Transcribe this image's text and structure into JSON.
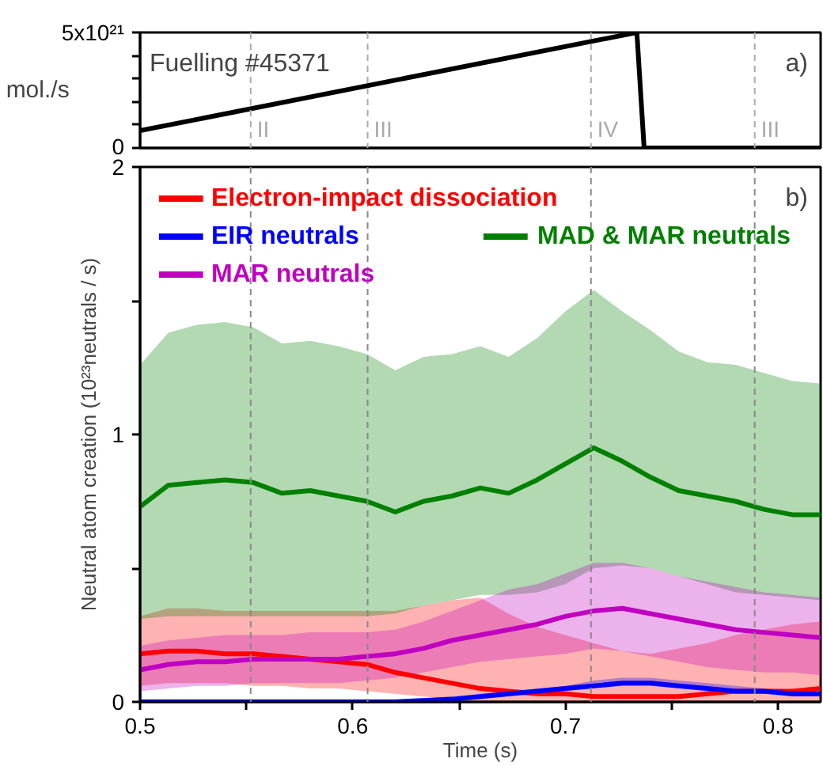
{
  "chart_data": [
    {
      "type": "line",
      "x": [
        0.5,
        0.7336,
        0.737,
        0.82
      ],
      "ylim": [
        0,
        5e+21
      ],
      "xlim": [
        0.5,
        0.82
      ],
      "yticks": [
        0,
        {
          "value": 1e+21,
          "label": null
        },
        {
          "value": 2e+21,
          "label": null
        },
        {
          "value": 3e+21,
          "label": null
        },
        {
          "value": 4e+21,
          "label": null
        },
        {
          "value": 5e+21,
          "label": "5x10²¹"
        }
      ],
      "ylabel": "mol./s",
      "tick_labels": "y",
      "series": [
        {
          "color": "#000000",
          "values": [
            7.5e+20,
            5e+21,
            0,
            0
          ]
        }
      ],
      "annotations": [
        "Fuelling #45371",
        "a)"
      ],
      "ref_lines": [
        {
          "axis": "x",
          "value": 0.552,
          "label": "II",
          "color": "#aaaaaa",
          "line_style": "dashed"
        },
        {
          "axis": "x",
          "value": 0.607,
          "label": "III",
          "color": "#aaaaaa",
          "line_style": "dashed"
        },
        {
          "axis": "x",
          "value": 0.712,
          "label": "IV",
          "color": "#aaaaaa",
          "line_style": "dashed"
        },
        {
          "axis": "x",
          "value": 0.789,
          "label": "III",
          "color": "#aaaaaa",
          "line_style": "dashed"
        }
      ]
    },
    {
      "type": "line",
      "xlabel": "Time (s)",
      "ylabel": "Neutral atom creation (10²³neutrals / s)",
      "x": [
        0.5,
        0.5133,
        0.5267,
        0.54,
        0.5533,
        0.5667,
        0.58,
        0.5933,
        0.6067,
        0.62,
        0.6333,
        0.6467,
        0.66,
        0.6733,
        0.6867,
        0.7,
        0.7133,
        0.7267,
        0.74,
        0.7533,
        0.7667,
        0.78,
        0.7933,
        0.8067,
        0.82
      ],
      "xlim": [
        0.5,
        0.82
      ],
      "ylim": [
        0,
        2
      ],
      "xticks": [
        {
          "value": 0.5,
          "label": "0.5"
        },
        {
          "value": 0.55,
          "label": null
        },
        {
          "value": 0.6,
          "label": "0.6"
        },
        {
          "value": 0.65,
          "label": null
        },
        {
          "value": 0.7,
          "label": "0.7"
        },
        {
          "value": 0.75,
          "label": null
        },
        {
          "value": 0.8,
          "label": "0.8"
        }
      ],
      "yticks": [
        0,
        {
          "value": 0.5,
          "label": null
        },
        1,
        {
          "value": 1.5,
          "label": null
        },
        2
      ],
      "legend": "top left",
      "annotations": [
        "b)"
      ],
      "ref_lines": [
        {
          "axis": "x",
          "value": 0.552,
          "color": "#888888",
          "line_style": "dashed"
        },
        {
          "axis": "x",
          "value": 0.607,
          "color": "#888888",
          "line_style": "dashed"
        },
        {
          "axis": "x",
          "value": 0.712,
          "color": "#888888",
          "line_style": "dashed"
        },
        {
          "axis": "x",
          "value": 0.789,
          "color": "#888888",
          "line_style": "dashed"
        }
      ],
      "series": [
        {
          "name": "Electron-impact dissociation",
          "color": "#ff0000",
          "values": [
            0.18,
            0.19,
            0.19,
            0.18,
            0.18,
            0.17,
            0.16,
            0.15,
            0.14,
            0.11,
            0.09,
            0.07,
            0.05,
            0.04,
            0.03,
            0.03,
            0.02,
            0.02,
            0.02,
            0.02,
            0.03,
            0.04,
            0.04,
            0.04,
            0.05
          ],
          "lower": [
            0.06,
            0.07,
            0.07,
            0.07,
            0.06,
            0.06,
            0.05,
            0.05,
            0.04,
            0.03,
            0.02,
            0.01,
            0.0,
            0.0,
            0.0,
            0.0,
            0.0,
            0.0,
            0.0,
            0.0,
            0.0,
            0.0,
            0.0,
            0.0,
            0.0
          ],
          "upper": [
            0.32,
            0.35,
            0.35,
            0.34,
            0.34,
            0.34,
            0.34,
            0.34,
            0.34,
            0.34,
            0.36,
            0.38,
            0.39,
            0.33,
            0.28,
            0.25,
            0.22,
            0.19,
            0.18,
            0.2,
            0.22,
            0.25,
            0.27,
            0.29,
            0.3
          ]
        },
        {
          "name": "EIR neutrals",
          "color": "#0000ff",
          "values": [
            0.0,
            0.0,
            0.0,
            0.0,
            0.0,
            0.0,
            0.0,
            0.0,
            0.0,
            0.0,
            0.005,
            0.01,
            0.02,
            0.03,
            0.04,
            0.05,
            0.06,
            0.07,
            0.07,
            0.06,
            0.05,
            0.04,
            0.04,
            0.03,
            0.03
          ],
          "lower": [
            0.0,
            0.0,
            0.0,
            0.0,
            0.0,
            0.0,
            0.0,
            0.0,
            0.0,
            0.0,
            0.0,
            0.0,
            0.01,
            0.02,
            0.03,
            0.04,
            0.05,
            0.06,
            0.06,
            0.05,
            0.04,
            0.03,
            0.03,
            0.02,
            0.02
          ],
          "upper": [
            0.01,
            0.01,
            0.01,
            0.01,
            0.01,
            0.01,
            0.01,
            0.01,
            0.01,
            0.01,
            0.015,
            0.02,
            0.03,
            0.04,
            0.05,
            0.06,
            0.08,
            0.09,
            0.09,
            0.08,
            0.07,
            0.06,
            0.05,
            0.04,
            0.04
          ]
        },
        {
          "name": "MAD & MAR neutrals",
          "color": "#008000",
          "values": [
            0.73,
            0.81,
            0.82,
            0.83,
            0.82,
            0.78,
            0.79,
            0.77,
            0.75,
            0.71,
            0.75,
            0.77,
            0.8,
            0.78,
            0.83,
            0.89,
            0.95,
            0.9,
            0.84,
            0.79,
            0.77,
            0.75,
            0.72,
            0.7,
            0.7
          ],
          "lower": [
            0.31,
            0.32,
            0.32,
            0.32,
            0.32,
            0.32,
            0.32,
            0.32,
            0.32,
            0.33,
            0.36,
            0.38,
            0.4,
            0.4,
            0.41,
            0.44,
            0.5,
            0.51,
            0.5,
            0.47,
            0.44,
            0.41,
            0.4,
            0.39,
            0.38
          ],
          "upper": [
            1.26,
            1.38,
            1.41,
            1.42,
            1.4,
            1.34,
            1.35,
            1.33,
            1.3,
            1.24,
            1.29,
            1.3,
            1.33,
            1.29,
            1.36,
            1.46,
            1.54,
            1.46,
            1.39,
            1.31,
            1.27,
            1.26,
            1.23,
            1.2,
            1.19
          ]
        },
        {
          "name": "MAR neutrals",
          "color": "#c000c0",
          "values": [
            0.12,
            0.14,
            0.15,
            0.15,
            0.16,
            0.16,
            0.16,
            0.16,
            0.17,
            0.18,
            0.2,
            0.23,
            0.25,
            0.27,
            0.29,
            0.32,
            0.34,
            0.35,
            0.33,
            0.31,
            0.29,
            0.27,
            0.26,
            0.25,
            0.24
          ],
          "lower": [
            0.04,
            0.05,
            0.06,
            0.06,
            0.07,
            0.07,
            0.07,
            0.07,
            0.08,
            0.09,
            0.11,
            0.13,
            0.15,
            0.16,
            0.17,
            0.18,
            0.2,
            0.19,
            0.17,
            0.15,
            0.13,
            0.12,
            0.11,
            0.11,
            0.1
          ],
          "upper": [
            0.21,
            0.23,
            0.24,
            0.25,
            0.25,
            0.25,
            0.26,
            0.26,
            0.26,
            0.27,
            0.3,
            0.34,
            0.38,
            0.42,
            0.44,
            0.48,
            0.52,
            0.52,
            0.5,
            0.47,
            0.45,
            0.43,
            0.41,
            0.4,
            0.39
          ]
        }
      ]
    }
  ]
}
